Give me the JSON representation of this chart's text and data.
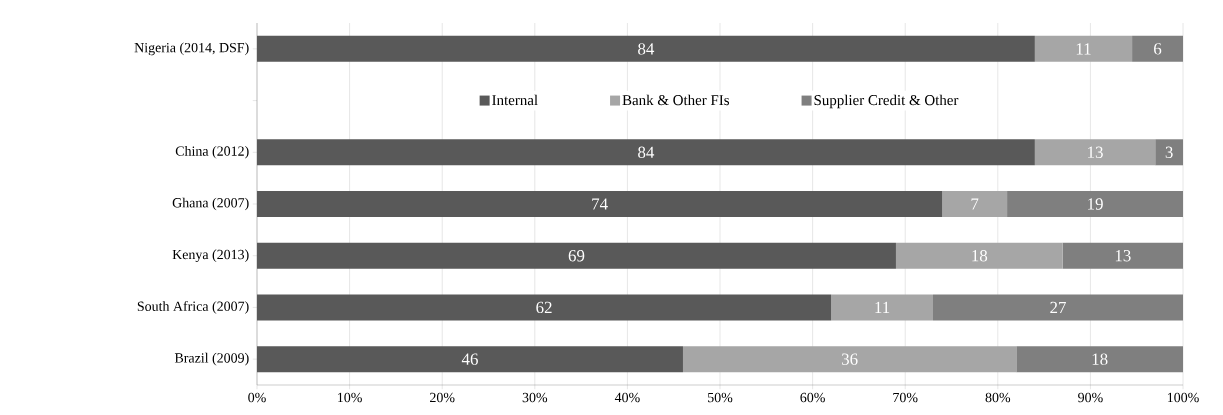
{
  "chart_data": {
    "type": "bar",
    "orientation": "horizontal",
    "stacked": true,
    "categories": [
      "Nigeria (2014, DSF)",
      null,
      "China (2012)",
      "Ghana (2007)",
      "Kenya (2013)",
      "South Africa (2007)",
      "Brazil (2009)"
    ],
    "series": [
      {
        "name": "Internal",
        "color": "#595959",
        "values": [
          84,
          null,
          84,
          74,
          69,
          62,
          46
        ],
        "value_labels": [
          "84",
          null,
          "84",
          "74",
          "69",
          "62",
          "46"
        ]
      },
      {
        "name": "Bank & Other FIs",
        "color": "#a6a6a6",
        "values": [
          10.5,
          null,
          13,
          7,
          18,
          11,
          36
        ],
        "value_labels": [
          "11",
          null,
          "13",
          "7",
          "18",
          "11",
          "36"
        ]
      },
      {
        "name": "Supplier Credit & Other",
        "color": "#7f7f7f",
        "values": [
          5.5,
          null,
          3,
          19,
          13,
          27,
          18
        ],
        "value_labels": [
          "6",
          null,
          "3",
          "19",
          "13",
          "27",
          "18"
        ]
      }
    ],
    "xlim": [
      0,
      100
    ],
    "xticks": [
      {
        "value": 0,
        "label": "0%"
      },
      {
        "value": 10,
        "label": "10%"
      },
      {
        "value": 20,
        "label": "20%"
      },
      {
        "value": 30,
        "label": "30%"
      },
      {
        "value": 40,
        "label": "40%"
      },
      {
        "value": 50,
        "label": "50%"
      },
      {
        "value": 60,
        "label": "60%"
      },
      {
        "value": 70,
        "label": "70%"
      },
      {
        "value": 80,
        "label": "80%"
      },
      {
        "value": 90,
        "label": "90%"
      },
      {
        "value": 100,
        "label": "100%"
      }
    ],
    "grid": "x",
    "legend": "top"
  }
}
